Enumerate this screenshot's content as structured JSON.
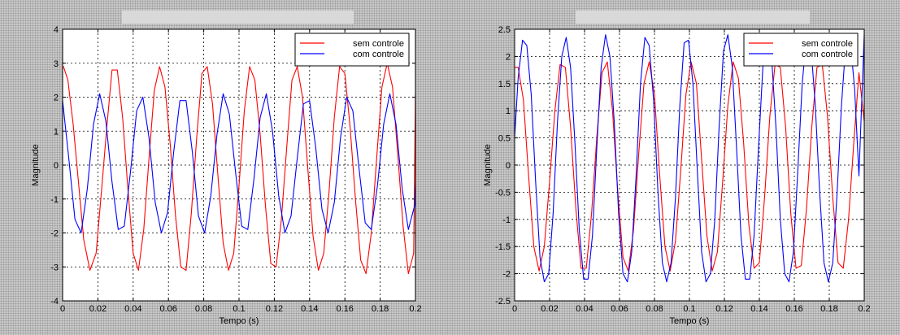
{
  "chart_data": [
    {
      "type": "line",
      "xlabel": "Tempo (s)",
      "ylabel": "Magnitude",
      "xlim": [
        0,
        0.2
      ],
      "ylim": [
        -4,
        4
      ],
      "xticks": [
        "0",
        "0.02",
        "0.04",
        "0.06",
        "0.08",
        "0.1",
        "0.12",
        "0.14",
        "0.16",
        "0.18",
        "0.2"
      ],
      "yticks": [
        "-4",
        "-3",
        "-2",
        "-1",
        "0",
        "1",
        "2",
        "3",
        "4"
      ],
      "grid": true,
      "legend_position": "top-right",
      "series": [
        {
          "name": "sem controle",
          "color": "#ff0000",
          "x": [
            0,
            0.0005,
            0.003,
            0.006,
            0.009,
            0.012,
            0.0155,
            0.019,
            0.022,
            0.025,
            0.028,
            0.031,
            0.034,
            0.037,
            0.04,
            0.043,
            0.046,
            0.049,
            0.052,
            0.055,
            0.058,
            0.061,
            0.064,
            0.067,
            0.07,
            0.073,
            0.076,
            0.079,
            0.082,
            0.085,
            0.088,
            0.091,
            0.094,
            0.097,
            0.1,
            0.103,
            0.106,
            0.109,
            0.112,
            0.115,
            0.118,
            0.121,
            0.124,
            0.127,
            0.13,
            0.133,
            0.136,
            0.139,
            0.142,
            0.145,
            0.148,
            0.151,
            0.154,
            0.157,
            0.16,
            0.163,
            0.166,
            0.169,
            0.172,
            0.175,
            0.178,
            0.181,
            0.184,
            0.187,
            0.19,
            0.193,
            0.196,
            0.199,
            0.2
          ],
          "y": [
            2.9,
            2.9,
            2.5,
            1.2,
            -0.5,
            -2.2,
            -3.1,
            -2.6,
            -0.8,
            1.1,
            2.8,
            2.8,
            1.4,
            -0.7,
            -2.6,
            -3.1,
            -1.9,
            0.2,
            2.2,
            2.9,
            2.3,
            0.6,
            -1.5,
            -3.0,
            -3.1,
            -1.4,
            0.8,
            2.7,
            2.9,
            1.8,
            -0.3,
            -2.3,
            -3.1,
            -2.6,
            -0.6,
            1.6,
            2.9,
            2.5,
            0.9,
            -1.2,
            -2.9,
            -3.0,
            -1.6,
            0.5,
            2.5,
            2.9,
            2.0,
            -0.1,
            -2.1,
            -3.1,
            -2.6,
            -0.8,
            1.4,
            2.9,
            2.7,
            1.1,
            -1.0,
            -2.8,
            -3.2,
            -2.0,
            0.2,
            2.3,
            3.0,
            2.3,
            0.3,
            -1.8,
            -3.2,
            -2.6,
            2.1
          ]
        },
        {
          "name": "com controle",
          "color": "#0000ff",
          "x": [
            0,
            0.0035,
            0.007,
            0.0105,
            0.014,
            0.0175,
            0.021,
            0.0245,
            0.028,
            0.0315,
            0.035,
            0.0385,
            0.042,
            0.0455,
            0.049,
            0.0525,
            0.056,
            0.0595,
            0.063,
            0.0665,
            0.07,
            0.0735,
            0.077,
            0.0805,
            0.084,
            0.0875,
            0.091,
            0.0945,
            0.098,
            0.1015,
            0.105,
            0.1085,
            0.112,
            0.1155,
            0.119,
            0.1225,
            0.126,
            0.1295,
            0.133,
            0.1365,
            0.14,
            0.1435,
            0.147,
            0.1505,
            0.154,
            0.1575,
            0.161,
            0.1645,
            0.168,
            0.1715,
            0.175,
            0.1785,
            0.182,
            0.1855,
            0.189,
            0.1925,
            0.196,
            0.1995,
            0.2
          ],
          "y": [
            1.9,
            0.2,
            -1.6,
            -2.0,
            -0.7,
            1.2,
            2.1,
            1.3,
            -0.5,
            -1.9,
            -1.8,
            -0.2,
            1.6,
            2.0,
            0.8,
            -1.1,
            -2.0,
            -1.4,
            0.4,
            1.9,
            1.9,
            0.4,
            -1.5,
            -2.0,
            -0.9,
            0.9,
            2.1,
            1.5,
            -0.2,
            -1.8,
            -1.9,
            -0.4,
            1.4,
            2.1,
            1.0,
            -0.9,
            -2.0,
            -1.5,
            0.2,
            1.8,
            1.9,
            0.5,
            -1.3,
            -2.0,
            -1.1,
            0.8,
            2.0,
            1.6,
            -0.1,
            -1.7,
            -1.9,
            -0.6,
            1.2,
            2.1,
            1.2,
            -0.7,
            -1.9,
            -1.2,
            -0.5
          ]
        }
      ]
    },
    {
      "type": "line",
      "xlabel": "Tempo (s)",
      "ylabel": "Magnitude",
      "xlim": [
        0,
        0.2
      ],
      "ylim": [
        -2.5,
        2.5
      ],
      "xticks": [
        "0",
        "0.02",
        "0.04",
        "0.06",
        "0.08",
        "0.1",
        "0.12",
        "0.14",
        "0.16",
        "0.18",
        "0.2"
      ],
      "yticks": [
        "-2.5",
        "-2",
        "-1.5",
        "-1",
        "-0.5",
        "0",
        "0.5",
        "1",
        "1.5",
        "2",
        "2.5"
      ],
      "grid": true,
      "legend_position": "top-right",
      "series": [
        {
          "name": "sem controle",
          "color": "#ff0000",
          "x": [
            0,
            0.002,
            0.005,
            0.008,
            0.011,
            0.014,
            0.017,
            0.02,
            0.023,
            0.026,
            0.029,
            0.032,
            0.035,
            0.038,
            0.041,
            0.044,
            0.047,
            0.05,
            0.053,
            0.056,
            0.059,
            0.062,
            0.065,
            0.068,
            0.071,
            0.074,
            0.077,
            0.08,
            0.083,
            0.086,
            0.089,
            0.092,
            0.095,
            0.098,
            0.101,
            0.104,
            0.107,
            0.11,
            0.113,
            0.116,
            0.119,
            0.122,
            0.125,
            0.128,
            0.131,
            0.134,
            0.137,
            0.14,
            0.143,
            0.146,
            0.149,
            0.152,
            0.155,
            0.158,
            0.161,
            0.164,
            0.167,
            0.17,
            0.173,
            0.176,
            0.179,
            0.182,
            0.185,
            0.188,
            0.191,
            0.194,
            0.197,
            0.2
          ],
          "y": [
            1.8,
            1.8,
            1.2,
            -0.2,
            -1.5,
            -1.95,
            -1.5,
            -0.3,
            1.0,
            1.85,
            1.8,
            0.7,
            -0.8,
            -1.9,
            -1.9,
            -0.9,
            0.5,
            1.7,
            1.9,
            1.0,
            -0.5,
            -1.7,
            -1.95,
            -1.2,
            0.2,
            1.5,
            1.9,
            1.3,
            -0.2,
            -1.5,
            -1.95,
            -1.4,
            -0.1,
            1.3,
            1.9,
            1.5,
            0.1,
            -1.3,
            -1.95,
            -1.6,
            -0.3,
            1.1,
            1.9,
            1.6,
            0.4,
            -1.1,
            -1.9,
            -1.8,
            -0.6,
            0.9,
            1.85,
            1.8,
            0.7,
            -0.9,
            -1.9,
            -1.85,
            -0.8,
            0.7,
            1.8,
            1.85,
            0.9,
            -0.6,
            -1.8,
            -1.9,
            -1.0,
            0.4,
            1.7,
            0.8
          ]
        },
        {
          "name": "com controle",
          "color": "#0000ff",
          "x": [
            0,
            0.002,
            0.0045,
            0.007,
            0.0095,
            0.012,
            0.0145,
            0.017,
            0.0195,
            0.022,
            0.0245,
            0.027,
            0.0295,
            0.032,
            0.0345,
            0.037,
            0.0395,
            0.042,
            0.0445,
            0.047,
            0.0495,
            0.052,
            0.0545,
            0.057,
            0.0595,
            0.062,
            0.0645,
            0.067,
            0.0695,
            0.072,
            0.0745,
            0.077,
            0.0795,
            0.082,
            0.0845,
            0.087,
            0.0895,
            0.092,
            0.0945,
            0.097,
            0.0995,
            0.102,
            0.1045,
            0.107,
            0.1095,
            0.112,
            0.1145,
            0.117,
            0.1195,
            0.122,
            0.1245,
            0.127,
            0.1295,
            0.132,
            0.1345,
            0.137,
            0.1395,
            0.142,
            0.1445,
            0.147,
            0.1495,
            0.152,
            0.1545,
            0.157,
            0.1595,
            0.162,
            0.1645,
            0.167,
            0.1695,
            0.172,
            0.1745,
            0.177,
            0.1795,
            0.182,
            0.1845,
            0.187,
            0.1895,
            0.192,
            0.1945,
            0.197,
            0.2
          ],
          "y": [
            0.5,
            1.6,
            2.3,
            2.2,
            1.3,
            -0.3,
            -1.7,
            -2.15,
            -2.0,
            -0.9,
            0.8,
            2.0,
            2.35,
            1.8,
            0.4,
            -1.2,
            -2.1,
            -2.1,
            -1.3,
            0.3,
            1.8,
            2.4,
            2.0,
            0.8,
            -0.9,
            -2.0,
            -2.15,
            -1.6,
            -0.2,
            1.5,
            2.35,
            2.2,
            1.2,
            -0.5,
            -1.8,
            -2.15,
            -1.8,
            -0.6,
            1.1,
            2.25,
            2.3,
            1.5,
            -0.1,
            -1.6,
            -2.15,
            -2.0,
            -1.0,
            0.7,
            2.1,
            2.4,
            1.8,
            0.3,
            -1.3,
            -2.1,
            -2.1,
            -1.3,
            0.3,
            1.8,
            2.4,
            2.0,
            0.7,
            -1.0,
            -2.0,
            -2.15,
            -1.6,
            -0.1,
            1.5,
            2.35,
            2.2,
            1.1,
            -0.5,
            -1.8,
            -2.15,
            -1.8,
            -0.5,
            1.1,
            2.25,
            2.3,
            1.4,
            -0.2,
            2.4
          ]
        }
      ]
    }
  ]
}
